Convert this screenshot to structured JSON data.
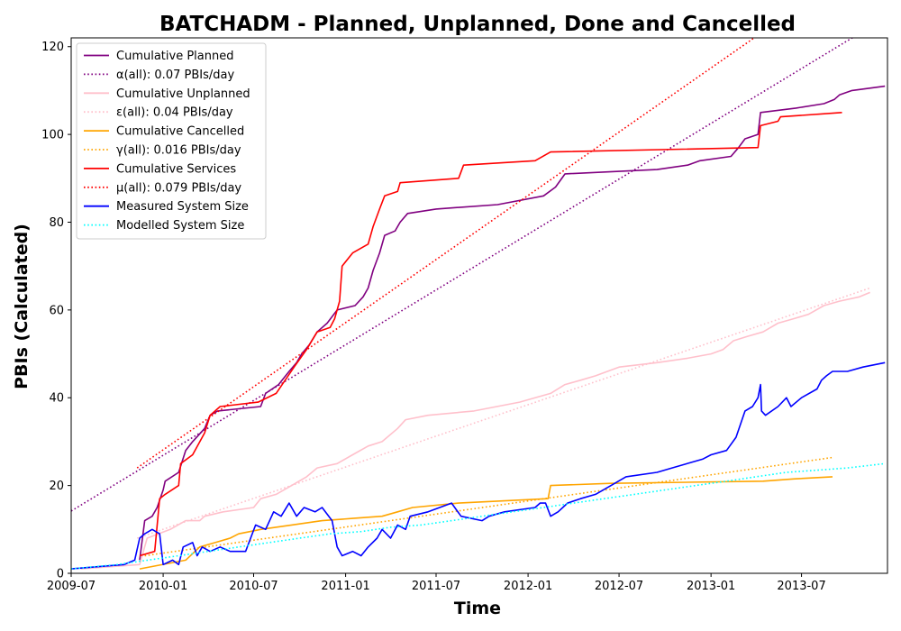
{
  "chart_data": {
    "type": "line",
    "title": "BATCHADM - Planned, Unplanned, Done  and Cancelled",
    "xlabel": "Time",
    "ylabel": "PBIs (Calculated)",
    "xlim": [
      "2009-07-01",
      "2013-12-20"
    ],
    "ylim": [
      0,
      122
    ],
    "x_ticks": [
      "2009-07",
      "2010-01",
      "2010-07",
      "2011-01",
      "2011-07",
      "2012-01",
      "2012-07",
      "2013-01",
      "2013-07"
    ],
    "y_ticks": [
      0,
      20,
      40,
      60,
      80,
      100,
      120
    ],
    "grid": false,
    "legend_position": "top-left",
    "series": [
      {
        "name": "Cumulative Planned",
        "style": "solid",
        "color": "#800080",
        "points": [
          [
            "2009-11-15",
            3
          ],
          [
            "2009-11-25",
            12
          ],
          [
            "2009-12-10",
            13
          ],
          [
            "2009-12-20",
            15
          ],
          [
            "2010-01-01",
            19
          ],
          [
            "2010-01-05",
            21
          ],
          [
            "2010-02-01",
            23
          ],
          [
            "2010-02-15",
            28
          ],
          [
            "2010-03-01",
            30
          ],
          [
            "2010-03-25",
            33
          ],
          [
            "2010-04-05",
            36
          ],
          [
            "2010-04-20",
            37
          ],
          [
            "2010-07-15",
            38
          ],
          [
            "2010-07-25",
            41
          ],
          [
            "2010-08-20",
            43
          ],
          [
            "2010-09-10",
            46
          ],
          [
            "2010-09-25",
            48
          ],
          [
            "2010-10-05",
            50
          ],
          [
            "2010-10-20",
            52
          ],
          [
            "2010-11-05",
            55
          ],
          [
            "2010-11-25",
            57
          ],
          [
            "2010-12-15",
            60
          ],
          [
            "2011-01-20",
            61
          ],
          [
            "2011-02-05",
            63
          ],
          [
            "2011-02-15",
            65
          ],
          [
            "2011-02-25",
            69
          ],
          [
            "2011-03-10",
            73
          ],
          [
            "2011-03-20",
            77
          ],
          [
            "2011-04-10",
            78
          ],
          [
            "2011-04-20",
            80
          ],
          [
            "2011-05-05",
            82
          ],
          [
            "2011-07-01",
            83
          ],
          [
            "2011-11-01",
            84
          ],
          [
            "2012-02-01",
            86
          ],
          [
            "2012-02-25",
            88
          ],
          [
            "2012-03-15",
            91
          ],
          [
            "2012-09-15",
            92
          ],
          [
            "2012-11-15",
            93
          ],
          [
            "2012-12-10",
            94
          ],
          [
            "2013-02-10",
            95
          ],
          [
            "2013-02-25",
            97
          ],
          [
            "2013-03-10",
            99
          ],
          [
            "2013-04-05",
            100
          ],
          [
            "2013-04-10",
            105
          ],
          [
            "2013-06-20",
            106
          ],
          [
            "2013-08-15",
            107
          ],
          [
            "2013-09-05",
            108
          ],
          [
            "2013-09-15",
            109
          ],
          [
            "2013-10-10",
            110
          ],
          [
            "2013-12-15",
            111
          ]
        ]
      },
      {
        "name": "α(all): 0.07 PBIs/day",
        "style": "dotted",
        "color": "#800080",
        "points": [
          [
            "2009-07-01",
            14.2
          ],
          [
            "2013-10-25",
            123
          ]
        ]
      },
      {
        "name": "Cumulative Unplanned",
        "style": "solid",
        "color": "#ffc0cb",
        "points": [
          [
            "2009-07-20",
            1
          ],
          [
            "2009-11-15",
            2
          ],
          [
            "2009-11-30",
            8
          ],
          [
            "2010-01-15",
            10
          ],
          [
            "2010-02-15",
            12
          ],
          [
            "2010-03-15",
            12
          ],
          [
            "2010-03-25",
            13
          ],
          [
            "2010-05-01",
            14
          ],
          [
            "2010-07-01",
            15
          ],
          [
            "2010-07-15",
            17
          ],
          [
            "2010-08-15",
            18
          ],
          [
            "2010-09-15",
            20
          ],
          [
            "2010-10-15",
            22
          ],
          [
            "2010-11-05",
            24
          ],
          [
            "2010-12-15",
            25
          ],
          [
            "2011-01-15",
            27
          ],
          [
            "2011-02-15",
            29
          ],
          [
            "2011-03-15",
            30
          ],
          [
            "2011-04-15",
            33
          ],
          [
            "2011-05-01",
            35
          ],
          [
            "2011-06-15",
            36
          ],
          [
            "2011-09-15",
            37
          ],
          [
            "2011-12-15",
            39
          ],
          [
            "2012-02-15",
            41
          ],
          [
            "2012-03-15",
            43
          ],
          [
            "2012-04-15",
            44
          ],
          [
            "2012-05-15",
            45
          ],
          [
            "2012-07-01",
            47
          ],
          [
            "2012-09-15",
            48
          ],
          [
            "2012-11-15",
            49
          ],
          [
            "2013-01-01",
            50
          ],
          [
            "2013-01-25",
            51
          ],
          [
            "2013-02-15",
            53
          ],
          [
            "2013-03-15",
            54
          ],
          [
            "2013-04-15",
            55
          ],
          [
            "2013-05-15",
            57
          ],
          [
            "2013-06-15",
            58
          ],
          [
            "2013-07-15",
            59
          ],
          [
            "2013-08-15",
            61
          ],
          [
            "2013-09-15",
            62
          ],
          [
            "2013-10-25",
            63
          ],
          [
            "2013-11-15",
            64
          ]
        ]
      },
      {
        "name": "ε(all): 0.04 PBIs/day",
        "style": "dotted",
        "color": "#ffc0cb",
        "points": [
          [
            "2009-11-10",
            8
          ],
          [
            "2013-11-15",
            65
          ]
        ]
      },
      {
        "name": "Cumulative Cancelled",
        "style": "solid",
        "color": "#ffa500",
        "points": [
          [
            "2009-11-15",
            1
          ],
          [
            "2010-02-15",
            3
          ],
          [
            "2010-03-15",
            6
          ],
          [
            "2010-04-15",
            7
          ],
          [
            "2010-05-15",
            8
          ],
          [
            "2010-06-01",
            9
          ],
          [
            "2010-07-15",
            10
          ],
          [
            "2010-09-15",
            11
          ],
          [
            "2010-11-15",
            12
          ],
          [
            "2011-01-15",
            12.5
          ],
          [
            "2011-03-15",
            13
          ],
          [
            "2011-04-15",
            14
          ],
          [
            "2011-05-15",
            15
          ],
          [
            "2011-08-15",
            16
          ],
          [
            "2012-02-10",
            17
          ],
          [
            "2012-02-15",
            20
          ],
          [
            "2012-06-15",
            20.5
          ],
          [
            "2013-04-15",
            21
          ],
          [
            "2013-06-15",
            21.5
          ],
          [
            "2013-09-01",
            22
          ]
        ]
      },
      {
        "name": "γ(all): 0.016 PBIs/day",
        "style": "dotted",
        "color": "#ffa500",
        "points": [
          [
            "2009-11-25",
            4
          ],
          [
            "2013-09-01",
            26.4
          ]
        ]
      },
      {
        "name": "Cumulative Services",
        "style": "solid",
        "color": "#ff0000",
        "points": [
          [
            "2009-11-15",
            4
          ],
          [
            "2009-12-15",
            5
          ],
          [
            "2009-12-25",
            17
          ],
          [
            "2010-01-05",
            18
          ],
          [
            "2010-02-01",
            20
          ],
          [
            "2010-02-05",
            25
          ],
          [
            "2010-03-01",
            27
          ],
          [
            "2010-03-25",
            32
          ],
          [
            "2010-04-05",
            36
          ],
          [
            "2010-04-25",
            38
          ],
          [
            "2010-07-10",
            39
          ],
          [
            "2010-08-15",
            41
          ],
          [
            "2010-09-20",
            47
          ],
          [
            "2010-10-15",
            51
          ],
          [
            "2010-11-05",
            55
          ],
          [
            "2010-12-01",
            56
          ],
          [
            "2010-12-10",
            58
          ],
          [
            "2010-12-20",
            62
          ],
          [
            "2010-12-25",
            70
          ],
          [
            "2011-01-15",
            73
          ],
          [
            "2011-02-15",
            75
          ],
          [
            "2011-02-25",
            79
          ],
          [
            "2011-03-10",
            83
          ],
          [
            "2011-03-20",
            86
          ],
          [
            "2011-04-15",
            87
          ],
          [
            "2011-04-20",
            89
          ],
          [
            "2011-08-15",
            90
          ],
          [
            "2011-08-25",
            93
          ],
          [
            "2012-01-15",
            94
          ],
          [
            "2012-02-15",
            96
          ],
          [
            "2013-04-05",
            97
          ],
          [
            "2013-04-10",
            102
          ],
          [
            "2013-05-15",
            103
          ],
          [
            "2013-05-20",
            104
          ],
          [
            "2013-09-20",
            105
          ]
        ]
      },
      {
        "name": "μ(all): 0.079 PBIs/day",
        "style": "dotted",
        "color": "#ff0000",
        "points": [
          [
            "2009-11-10",
            24
          ],
          [
            "2013-04-10",
            123
          ]
        ]
      },
      {
        "name": "Measured System Size",
        "style": "solid",
        "color": "#0000ff",
        "points": [
          [
            "2009-07-01",
            1
          ],
          [
            "2009-10-15",
            2
          ],
          [
            "2009-11-05",
            3
          ],
          [
            "2009-11-15",
            8
          ],
          [
            "2009-11-25",
            9
          ],
          [
            "2009-12-10",
            10
          ],
          [
            "2009-12-25",
            9
          ],
          [
            "2010-01-01",
            2
          ],
          [
            "2010-01-20",
            3
          ],
          [
            "2010-02-01",
            2
          ],
          [
            "2010-02-10",
            6
          ],
          [
            "2010-03-01",
            7
          ],
          [
            "2010-03-10",
            4
          ],
          [
            "2010-03-20",
            6
          ],
          [
            "2010-04-05",
            5
          ],
          [
            "2010-04-25",
            6
          ],
          [
            "2010-05-15",
            5
          ],
          [
            "2010-06-15",
            5
          ],
          [
            "2010-07-05",
            11
          ],
          [
            "2010-07-25",
            10
          ],
          [
            "2010-08-10",
            14
          ],
          [
            "2010-08-25",
            13
          ],
          [
            "2010-09-10",
            16
          ],
          [
            "2010-09-25",
            13
          ],
          [
            "2010-10-10",
            15
          ],
          [
            "2010-11-01",
            14
          ],
          [
            "2010-11-15",
            15
          ],
          [
            "2010-12-05",
            12
          ],
          [
            "2010-12-15",
            6
          ],
          [
            "2010-12-25",
            4
          ],
          [
            "2011-01-15",
            5
          ],
          [
            "2011-02-01",
            4
          ],
          [
            "2011-02-15",
            6
          ],
          [
            "2011-03-05",
            8
          ],
          [
            "2011-03-15",
            10
          ],
          [
            "2011-04-01",
            8
          ],
          [
            "2011-04-15",
            11
          ],
          [
            "2011-05-01",
            10
          ],
          [
            "2011-05-10",
            13
          ],
          [
            "2011-06-15",
            14
          ],
          [
            "2011-08-01",
            16
          ],
          [
            "2011-08-20",
            13
          ],
          [
            "2011-10-01",
            12
          ],
          [
            "2011-10-15",
            13
          ],
          [
            "2011-11-15",
            14
          ],
          [
            "2012-01-15",
            15
          ],
          [
            "2012-01-25",
            16
          ],
          [
            "2012-02-05",
            16
          ],
          [
            "2012-02-15",
            13
          ],
          [
            "2012-03-01",
            14
          ],
          [
            "2012-03-20",
            16
          ],
          [
            "2012-04-15",
            17
          ],
          [
            "2012-05-15",
            18
          ],
          [
            "2012-06-15",
            20
          ],
          [
            "2012-07-15",
            22
          ],
          [
            "2012-09-15",
            23
          ],
          [
            "2012-10-15",
            24
          ],
          [
            "2012-12-15",
            26
          ],
          [
            "2013-01-01",
            27
          ],
          [
            "2013-02-01",
            28
          ],
          [
            "2013-02-20",
            31
          ],
          [
            "2013-03-10",
            37
          ],
          [
            "2013-03-25",
            38
          ],
          [
            "2013-04-05",
            40
          ],
          [
            "2013-04-10",
            43
          ],
          [
            "2013-04-12",
            37
          ],
          [
            "2013-04-20",
            36
          ],
          [
            "2013-05-15",
            38
          ],
          [
            "2013-06-01",
            40
          ],
          [
            "2013-06-10",
            38
          ],
          [
            "2013-07-01",
            40
          ],
          [
            "2013-08-01",
            42
          ],
          [
            "2013-08-10",
            44
          ],
          [
            "2013-08-20",
            45
          ],
          [
            "2013-09-01",
            46
          ],
          [
            "2013-10-01",
            46
          ],
          [
            "2013-11-01",
            47
          ],
          [
            "2013-12-15",
            48
          ]
        ]
      },
      {
        "name": "Modelled System Size",
        "style": "dotted",
        "color": "#00ffff",
        "points": [
          [
            "2009-07-01",
            1
          ],
          [
            "2009-10-01",
            2
          ],
          [
            "2009-12-01",
            3
          ],
          [
            "2010-02-01",
            4
          ],
          [
            "2010-04-01",
            5
          ],
          [
            "2010-06-01",
            6
          ],
          [
            "2010-08-01",
            7
          ],
          [
            "2010-10-01",
            8
          ],
          [
            "2010-12-01",
            9
          ],
          [
            "2011-02-01",
            9.5
          ],
          [
            "2011-04-01",
            10.5
          ],
          [
            "2011-06-01",
            11
          ],
          [
            "2011-08-01",
            12
          ],
          [
            "2011-10-01",
            13
          ],
          [
            "2011-12-01",
            14
          ],
          [
            "2012-02-01",
            15
          ],
          [
            "2012-04-01",
            16
          ],
          [
            "2012-06-01",
            17
          ],
          [
            "2012-08-01",
            18
          ],
          [
            "2012-10-01",
            19
          ],
          [
            "2012-12-01",
            20
          ],
          [
            "2013-02-01",
            21
          ],
          [
            "2013-04-01",
            22
          ],
          [
            "2013-06-01",
            23
          ],
          [
            "2013-08-01",
            23.5
          ],
          [
            "2013-10-01",
            24
          ],
          [
            "2013-12-15",
            25
          ]
        ]
      }
    ]
  }
}
